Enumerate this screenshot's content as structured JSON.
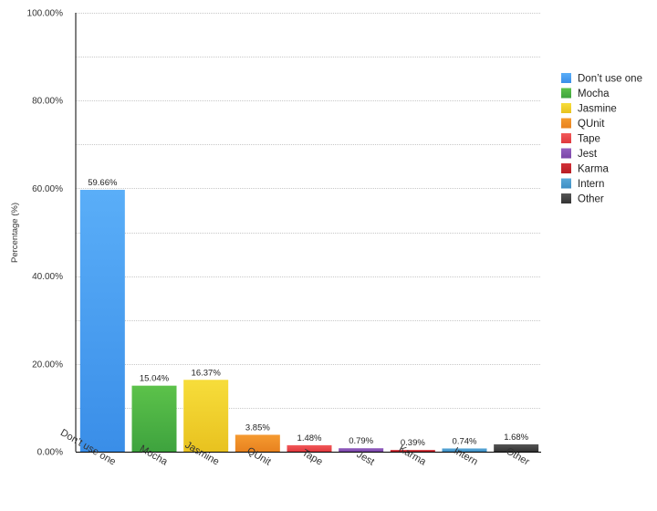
{
  "chart_data": {
    "type": "bar",
    "title": "",
    "xlabel": "",
    "ylabel": "Percentage (%)",
    "ylim": [
      0,
      100
    ],
    "y_ticks": [
      0,
      20,
      40,
      60,
      80,
      100
    ],
    "y_tick_labels": [
      "0.00%",
      "20.00%",
      "40.00%",
      "60.00%",
      "80.00%",
      "100.00%"
    ],
    "grid": true,
    "legend_position": "right",
    "categories": [
      "Don’t use one",
      "Mocha",
      "Jasmine",
      "QUnit",
      "Tape",
      "Jest",
      "Karma",
      "Intern",
      "Other"
    ],
    "values": [
      59.66,
      15.04,
      16.37,
      3.85,
      1.48,
      0.79,
      0.39,
      0.74,
      1.68
    ],
    "value_labels": [
      "59.66%",
      "15.04%",
      "16.37%",
      "3.85%",
      "1.48%",
      "0.79%",
      "0.39%",
      "0.74%",
      "1.68%"
    ],
    "colors": [
      "#3a8ee8",
      "#3ea33e",
      "#e8c21f",
      "#e8821f",
      "#e0383e",
      "#7a45a8",
      "#b81d24",
      "#3d8ec4",
      "#333333"
    ],
    "colors_light": [
      "#5aaef8",
      "#5cc24a",
      "#f7dd3b",
      "#f59a30",
      "#f25a5a",
      "#9460c0",
      "#d23038",
      "#5aa8d8",
      "#555555"
    ],
    "legend": [
      "Don’t use one",
      "Mocha",
      "Jasmine",
      "QUnit",
      "Tape",
      "Jest",
      "Karma",
      "Intern",
      "Other"
    ]
  }
}
